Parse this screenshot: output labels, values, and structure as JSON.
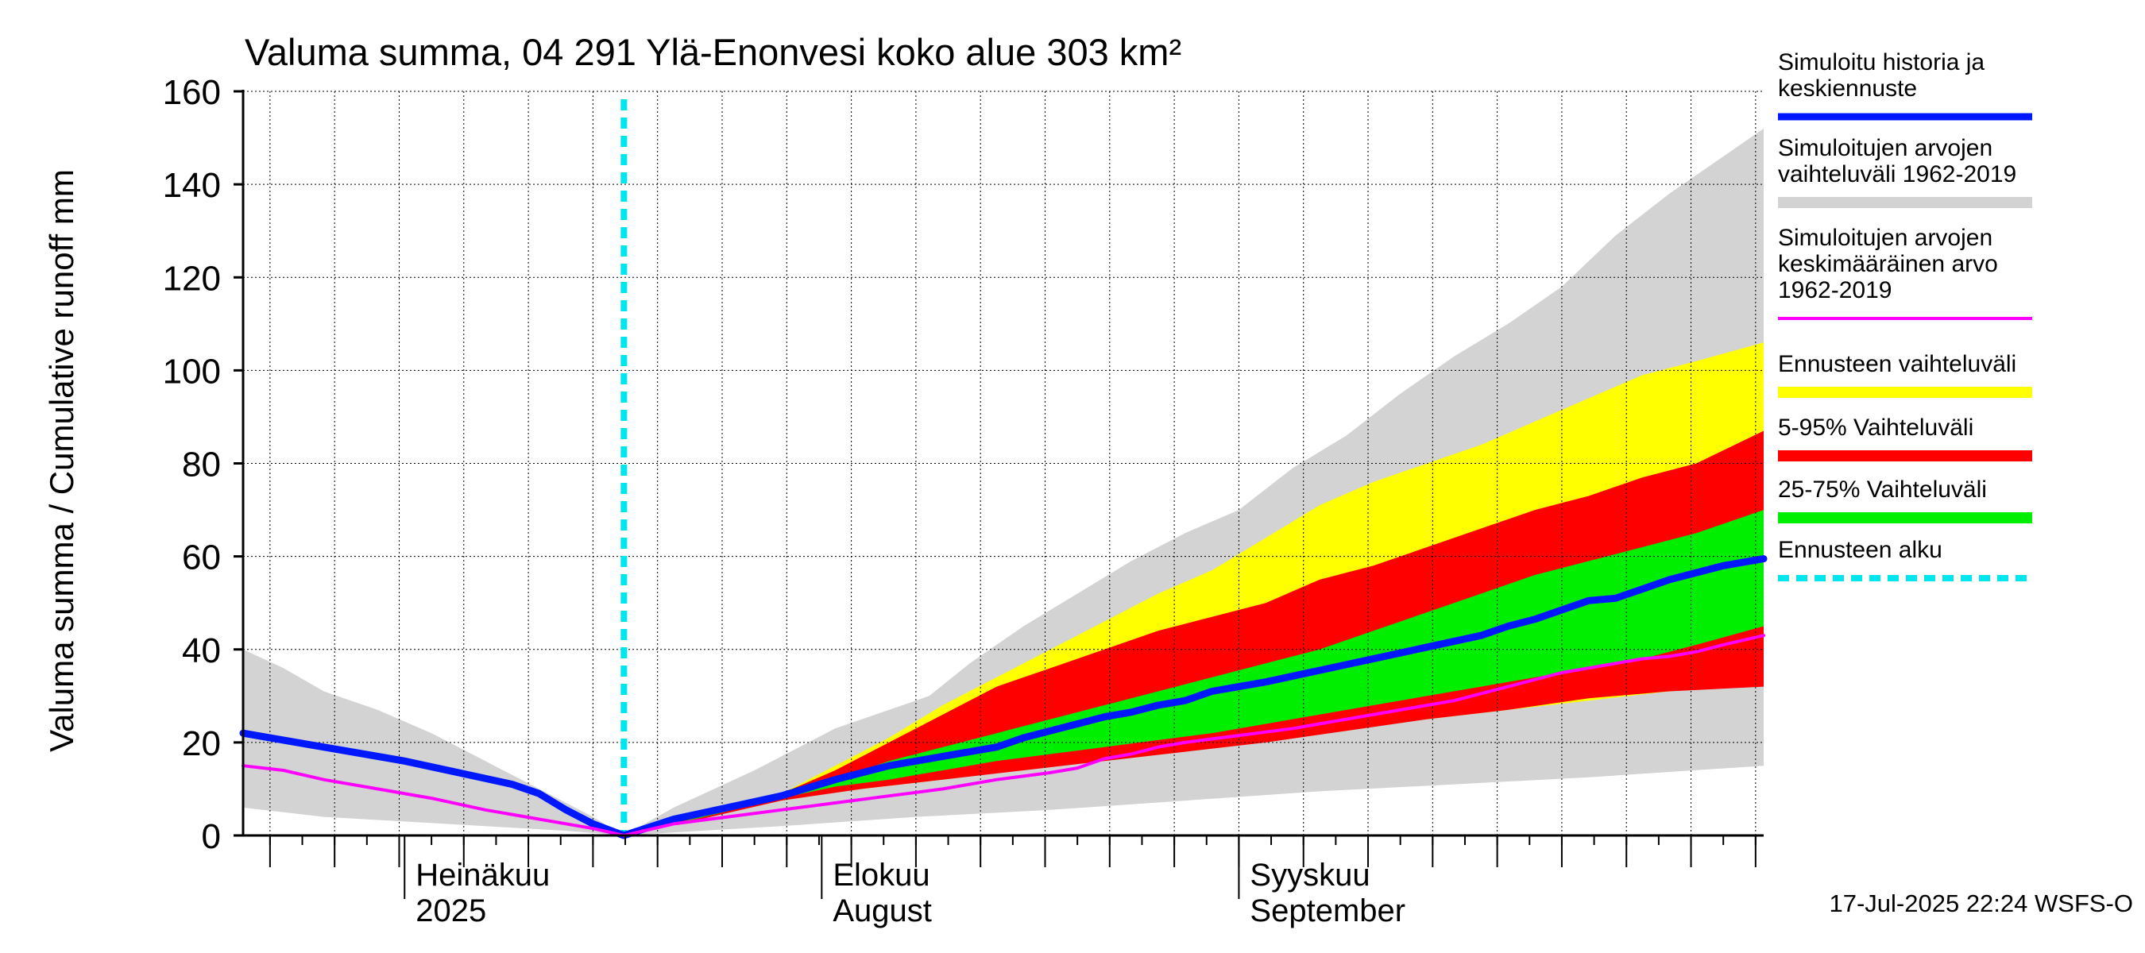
{
  "chart_data": {
    "type": "area",
    "title": "Valuma summa, 04 291 Ylä-Enonvesi koko alue 303 km²",
    "ylabel": "Valuma summa / Cumulative runoff    mm",
    "xlabel": "",
    "ylim": [
      0,
      160
    ],
    "yticks": [
      0,
      20,
      40,
      60,
      80,
      100,
      120,
      140,
      160
    ],
    "x_range_days": [
      0,
      113
    ],
    "forecast_start_day": 28.3,
    "month_labels": [
      {
        "line1": "Heinäkuu",
        "line2": "2025",
        "day": 12
      },
      {
        "line1": "Elokuu",
        "line2": "August",
        "day": 43
      },
      {
        "line1": "Syyskuu",
        "line2": "September",
        "day": 74
      }
    ],
    "footer": "17-Jul-2025 22:24 WSFS-O",
    "legend": [
      {
        "label": "Simuloitu historia ja keskiennuste",
        "lines": [
          "Simuloitu historia ja",
          "keskiennuste"
        ],
        "color": "#0018ff",
        "style": "line"
      },
      {
        "label": "Simuloitujen arvojen vaihteluväli 1962-2019",
        "lines": [
          "Simuloitujen arvojen",
          "vaihteluväli 1962-2019"
        ],
        "color": "#d3d3d3",
        "style": "band"
      },
      {
        "label": "Simuloitujen arvojen keskimääräinen arvo 1962-2019",
        "lines": [
          "Simuloitujen arvojen",
          "keskimääräinen arvo",
          "   1962-2019"
        ],
        "color": "#ff00ff",
        "style": "thin"
      },
      {
        "label": "Ennusteen vaihteluväli",
        "lines": [
          "Ennusteen vaihteluväli"
        ],
        "color": "#ffff00",
        "style": "band"
      },
      {
        "label": "5-95% Vaihteluväli",
        "lines": [
          "5-95% Vaihteluväli"
        ],
        "color": "#ff0000",
        "style": "band"
      },
      {
        "label": "25-75% Vaihteluväli",
        "lines": [
          "25-75% Vaihteluväli"
        ],
        "color": "#00ee00",
        "style": "band"
      },
      {
        "label": "Ennusteen alku",
        "lines": [
          "Ennusteen alku"
        ],
        "color": "#00e5ee",
        "style": "dashed"
      }
    ],
    "bands": {
      "historical_range": {
        "color": "#d3d3d3",
        "upper": [
          [
            0,
            40
          ],
          [
            3,
            36
          ],
          [
            6,
            31
          ],
          [
            10,
            27
          ],
          [
            14,
            22
          ],
          [
            18,
            16
          ],
          [
            22,
            10
          ],
          [
            26,
            4
          ],
          [
            28.3,
            0
          ],
          [
            32,
            6
          ],
          [
            38,
            14
          ],
          [
            44,
            23
          ],
          [
            48,
            27
          ],
          [
            51,
            30
          ],
          [
            54,
            37
          ],
          [
            58,
            45
          ],
          [
            62,
            52
          ],
          [
            66,
            59
          ],
          [
            70,
            65
          ],
          [
            74,
            70
          ],
          [
            78,
            79
          ],
          [
            82,
            86
          ],
          [
            86,
            95
          ],
          [
            90,
            103
          ],
          [
            94,
            110
          ],
          [
            98,
            118
          ],
          [
            102,
            129
          ],
          [
            106,
            138
          ],
          [
            110,
            146
          ],
          [
            113,
            152
          ]
        ],
        "lower": [
          [
            0,
            6
          ],
          [
            6,
            4
          ],
          [
            12,
            3
          ],
          [
            18,
            2
          ],
          [
            24,
            1
          ],
          [
            28.3,
            0
          ],
          [
            34,
            1
          ],
          [
            40,
            2
          ],
          [
            50,
            4
          ],
          [
            60,
            5.5
          ],
          [
            70,
            7.5
          ],
          [
            80,
            9.5
          ],
          [
            90,
            11
          ],
          [
            100,
            12.5
          ],
          [
            113,
            15
          ]
        ]
      },
      "forecast_range": {
        "color": "#ffff00",
        "upper": [
          [
            28.3,
            0
          ],
          [
            34,
            5
          ],
          [
            40,
            9
          ],
          [
            44,
            15
          ],
          [
            48,
            21
          ],
          [
            52,
            28
          ],
          [
            56,
            34
          ],
          [
            60,
            40
          ],
          [
            64,
            46
          ],
          [
            68,
            52
          ],
          [
            72,
            57
          ],
          [
            76,
            64
          ],
          [
            80,
            71
          ],
          [
            84,
            76
          ],
          [
            88,
            80
          ],
          [
            92,
            84
          ],
          [
            96,
            89
          ],
          [
            100,
            94
          ],
          [
            104,
            99
          ],
          [
            108,
            102
          ],
          [
            113,
            106
          ]
        ],
        "lower": [
          [
            28.3,
            0
          ],
          [
            34,
            4
          ],
          [
            40,
            8
          ],
          [
            46,
            10
          ],
          [
            52,
            12
          ],
          [
            58,
            15
          ],
          [
            64,
            17
          ],
          [
            70,
            19
          ],
          [
            76,
            21
          ],
          [
            82,
            23
          ],
          [
            88,
            25
          ],
          [
            94,
            27
          ],
          [
            100,
            29
          ],
          [
            106,
            31
          ],
          [
            113,
            33
          ]
        ]
      },
      "p5_95": {
        "color": "#ff0000",
        "upper": [
          [
            28.3,
            0
          ],
          [
            34,
            4.5
          ],
          [
            40,
            9
          ],
          [
            44,
            14
          ],
          [
            48,
            20
          ],
          [
            52,
            26
          ],
          [
            56,
            32
          ],
          [
            60,
            36
          ],
          [
            64,
            40
          ],
          [
            68,
            44
          ],
          [
            72,
            47
          ],
          [
            76,
            50
          ],
          [
            80,
            55
          ],
          [
            84,
            58
          ],
          [
            88,
            62
          ],
          [
            92,
            66
          ],
          [
            96,
            70
          ],
          [
            100,
            73
          ],
          [
            104,
            77
          ],
          [
            108,
            80
          ],
          [
            113,
            87
          ]
        ],
        "lower": [
          [
            28.3,
            0
          ],
          [
            34,
            3.5
          ],
          [
            40,
            7.5
          ],
          [
            46,
            10
          ],
          [
            52,
            12
          ],
          [
            58,
            14
          ],
          [
            64,
            16
          ],
          [
            70,
            18
          ],
          [
            76,
            20
          ],
          [
            82,
            22.5
          ],
          [
            88,
            25
          ],
          [
            94,
            27
          ],
          [
            100,
            29.5
          ],
          [
            106,
            31
          ],
          [
            113,
            32
          ]
        ]
      },
      "p25_75": {
        "color": "#00ee00",
        "upper": [
          [
            28.3,
            0
          ],
          [
            34,
            4
          ],
          [
            40,
            8
          ],
          [
            44,
            12
          ],
          [
            48,
            16
          ],
          [
            52,
            19
          ],
          [
            56,
            22
          ],
          [
            60,
            25
          ],
          [
            64,
            28
          ],
          [
            68,
            31
          ],
          [
            72,
            34
          ],
          [
            76,
            37
          ],
          [
            80,
            40
          ],
          [
            84,
            44
          ],
          [
            88,
            48
          ],
          [
            92,
            52
          ],
          [
            96,
            56
          ],
          [
            100,
            59
          ],
          [
            104,
            62
          ],
          [
            108,
            65
          ],
          [
            113,
            70
          ]
        ],
        "lower": [
          [
            28.3,
            0
          ],
          [
            34,
            3.8
          ],
          [
            40,
            8
          ],
          [
            44,
            10.5
          ],
          [
            48,
            12
          ],
          [
            52,
            14
          ],
          [
            56,
            16
          ],
          [
            60,
            17.5
          ],
          [
            64,
            19
          ],
          [
            68,
            20.5
          ],
          [
            72,
            22
          ],
          [
            76,
            24
          ],
          [
            80,
            26
          ],
          [
            84,
            28
          ],
          [
            88,
            30
          ],
          [
            92,
            32
          ],
          [
            96,
            34
          ],
          [
            100,
            36
          ],
          [
            104,
            38
          ],
          [
            108,
            41
          ],
          [
            113,
            45
          ]
        ]
      }
    },
    "series": [
      {
        "name": "Simuloitu historia ja keskiennuste",
        "color": "#0018ff",
        "points": [
          [
            0,
            22
          ],
          [
            4,
            20
          ],
          [
            8,
            18
          ],
          [
            12,
            16
          ],
          [
            16,
            13.5
          ],
          [
            20,
            11
          ],
          [
            22,
            9
          ],
          [
            24,
            5.5
          ],
          [
            26,
            2.5
          ],
          [
            28.3,
            0
          ],
          [
            32,
            3.5
          ],
          [
            36,
            6
          ],
          [
            40,
            8.5
          ],
          [
            44,
            12
          ],
          [
            48,
            15
          ],
          [
            52,
            17
          ],
          [
            56,
            19
          ],
          [
            58,
            21
          ],
          [
            60,
            22.5
          ],
          [
            62,
            24
          ],
          [
            64,
            25.5
          ],
          [
            66,
            26.5
          ],
          [
            68,
            28
          ],
          [
            70,
            29
          ],
          [
            72,
            31
          ],
          [
            74,
            32
          ],
          [
            76,
            33
          ],
          [
            80,
            35.5
          ],
          [
            84,
            38
          ],
          [
            88,
            40.5
          ],
          [
            92,
            43
          ],
          [
            94,
            45
          ],
          [
            96,
            46.5
          ],
          [
            98,
            48.5
          ],
          [
            100,
            50.5
          ],
          [
            102,
            51
          ],
          [
            104,
            53
          ],
          [
            106,
            55
          ],
          [
            108,
            56.5
          ],
          [
            110,
            58
          ],
          [
            113,
            59.5
          ]
        ]
      },
      {
        "name": "Simuloitujen arvojen keskimääräinen arvo 1962-2019",
        "color": "#ff00ff",
        "points": [
          [
            0,
            15
          ],
          [
            3,
            14
          ],
          [
            6,
            12
          ],
          [
            10,
            10
          ],
          [
            14,
            8
          ],
          [
            18,
            5.5
          ],
          [
            22,
            3.5
          ],
          [
            26,
            1.5
          ],
          [
            28.3,
            0
          ],
          [
            32,
            2.5
          ],
          [
            36,
            4
          ],
          [
            40,
            5.5
          ],
          [
            44,
            7
          ],
          [
            48,
            8.5
          ],
          [
            52,
            10
          ],
          [
            56,
            12
          ],
          [
            60,
            13.5
          ],
          [
            62,
            14.5
          ],
          [
            64,
            16.5
          ],
          [
            66,
            17.5
          ],
          [
            68,
            19
          ],
          [
            70,
            20
          ],
          [
            74,
            21.5
          ],
          [
            78,
            23
          ],
          [
            82,
            25
          ],
          [
            86,
            27
          ],
          [
            90,
            29
          ],
          [
            94,
            32
          ],
          [
            98,
            35
          ],
          [
            100,
            36
          ],
          [
            102,
            37
          ],
          [
            104,
            38
          ],
          [
            106,
            38.5
          ],
          [
            108,
            39.5
          ],
          [
            110,
            41
          ],
          [
            113,
            43
          ]
        ]
      }
    ]
  }
}
